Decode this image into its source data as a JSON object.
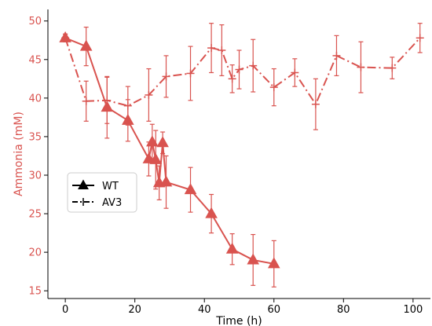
{
  "chart_data": {
    "type": "line",
    "xlabel": "Time (h)",
    "ylabel": "Ammonia (mM)",
    "xlim": [
      -5,
      105
    ],
    "ylim": [
      14,
      51.5
    ],
    "xticks": [
      0,
      20,
      40,
      60,
      80,
      100
    ],
    "yticks": [
      15,
      20,
      25,
      30,
      35,
      40,
      45,
      50
    ],
    "grid": false,
    "legend_position": "center-left",
    "colors": {
      "series": "#d9534f",
      "ylabel": "#d9534f",
      "yticks": "#d9534f",
      "text": "#000000",
      "legend_marker": "#000000"
    },
    "series": [
      {
        "name": "WT",
        "linestyle": "solid",
        "marker": "triangle",
        "x": [
          0,
          6,
          12,
          18,
          24,
          25,
          26,
          27,
          28,
          29,
          36,
          42,
          48,
          54,
          60
        ],
        "y": [
          47.8,
          46.7,
          38.8,
          37.1,
          32.1,
          34.3,
          32.0,
          29.0,
          34.2,
          29.1,
          28.1,
          25.0,
          20.4,
          19.0,
          18.5
        ],
        "err": [
          0.5,
          2.5,
          4.0,
          2.7,
          2.2,
          2.3,
          3.8,
          2.2,
          1.4,
          3.4,
          2.9,
          2.5,
          2.0,
          3.3,
          3.0
        ]
      },
      {
        "name": "AV3",
        "linestyle": "dashdot",
        "marker": "plus",
        "x": [
          0,
          6,
          12,
          18,
          24,
          29,
          36,
          42,
          45,
          48,
          50,
          54,
          60,
          66,
          72,
          78,
          85,
          94,
          102
        ],
        "y": [
          47.8,
          39.6,
          39.7,
          39.0,
          40.4,
          42.8,
          43.2,
          46.5,
          46.2,
          42.5,
          43.7,
          44.2,
          41.4,
          43.3,
          39.2,
          45.5,
          44.0,
          43.9,
          47.8
        ],
        "err": [
          0.5,
          2.6,
          3.0,
          2.5,
          3.4,
          2.7,
          3.5,
          3.2,
          3.3,
          1.8,
          2.5,
          3.4,
          2.4,
          1.8,
          3.3,
          2.6,
          3.3,
          1.4,
          1.9
        ]
      }
    ]
  }
}
